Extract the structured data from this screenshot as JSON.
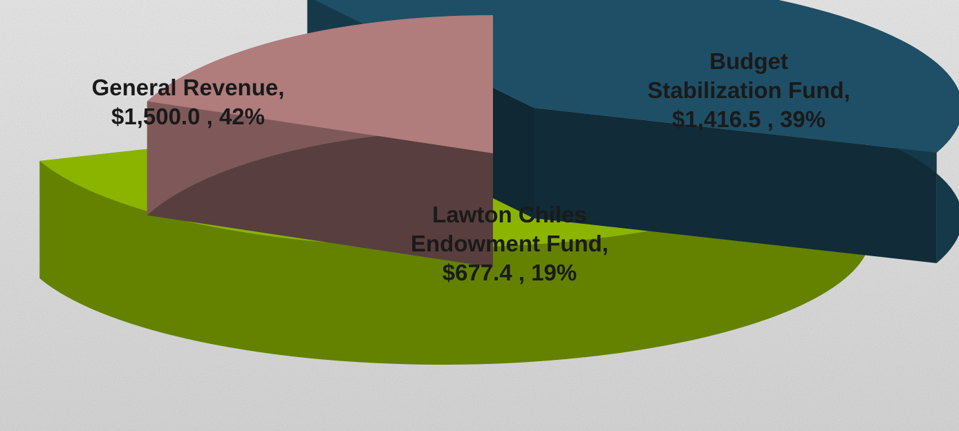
{
  "chart_data": {
    "type": "pie",
    "style": "3d-exploded",
    "slices": [
      {
        "name": "General Revenue",
        "value": 1500.0,
        "percent": 42,
        "color": "#8bb400",
        "label_lines": [
          "General Revenue,",
          "$1,500.0 , 42%"
        ]
      },
      {
        "name": "Budget Stabilization Fund",
        "value": 1416.5,
        "percent": 39,
        "color": "#1e4f66",
        "label_lines": [
          "Budget",
          "Stabilization Fund,",
          "$1,416.5 , 39%"
        ]
      },
      {
        "name": "Lawton Chiles Endowment Fund",
        "value": 677.4,
        "percent": 19,
        "color": "#b07c7c",
        "label_lines": [
          "Lawton Chiles",
          "Endowment Fund,",
          "$677.4 , 19%"
        ]
      }
    ],
    "legend": "none",
    "label_color": "#1a1a1a"
  }
}
